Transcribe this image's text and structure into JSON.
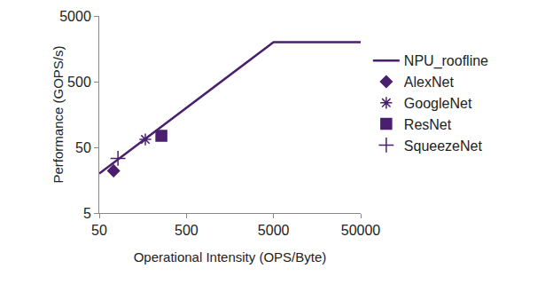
{
  "chart_data": {
    "type": "scatter",
    "x_label": "Operational Intensity (OPS/Byte)",
    "y_label": "Performance (GOPS/s)",
    "log": true,
    "grid": false,
    "legend": "right",
    "xlim": [
      50,
      50000
    ],
    "xticks": [
      50,
      500,
      5000,
      50000
    ],
    "ylim": [
      5,
      5000
    ],
    "yticks": [
      5,
      50,
      500,
      5000
    ],
    "series": [
      {
        "name": "NPU_roofline",
        "type": "line",
        "line_style": "solid",
        "color": "#4a1f6e",
        "x": [
          50,
          5000,
          50000
        ],
        "values": [
          20,
          2000,
          2000
        ]
      },
      {
        "name": "AlexNet",
        "type": "scatter",
        "marker": "diamond",
        "color": "#4a1f6e",
        "x": [
          73
        ],
        "values": [
          22
        ]
      },
      {
        "name": "GoogleNet",
        "type": "scatter",
        "marker": "asterisk",
        "color": "#4a1f6e",
        "x": [
          169
        ],
        "values": [
          66
        ]
      },
      {
        "name": "ResNet",
        "type": "scatter",
        "marker": "square",
        "color": "#4a1f6e",
        "x": [
          258
        ],
        "values": [
          75
        ]
      },
      {
        "name": "SqueezeNet",
        "type": "scatter",
        "marker": "cross",
        "color": "#4a1f6e",
        "x": [
          82
        ],
        "values": [
          34
        ]
      }
    ]
  }
}
